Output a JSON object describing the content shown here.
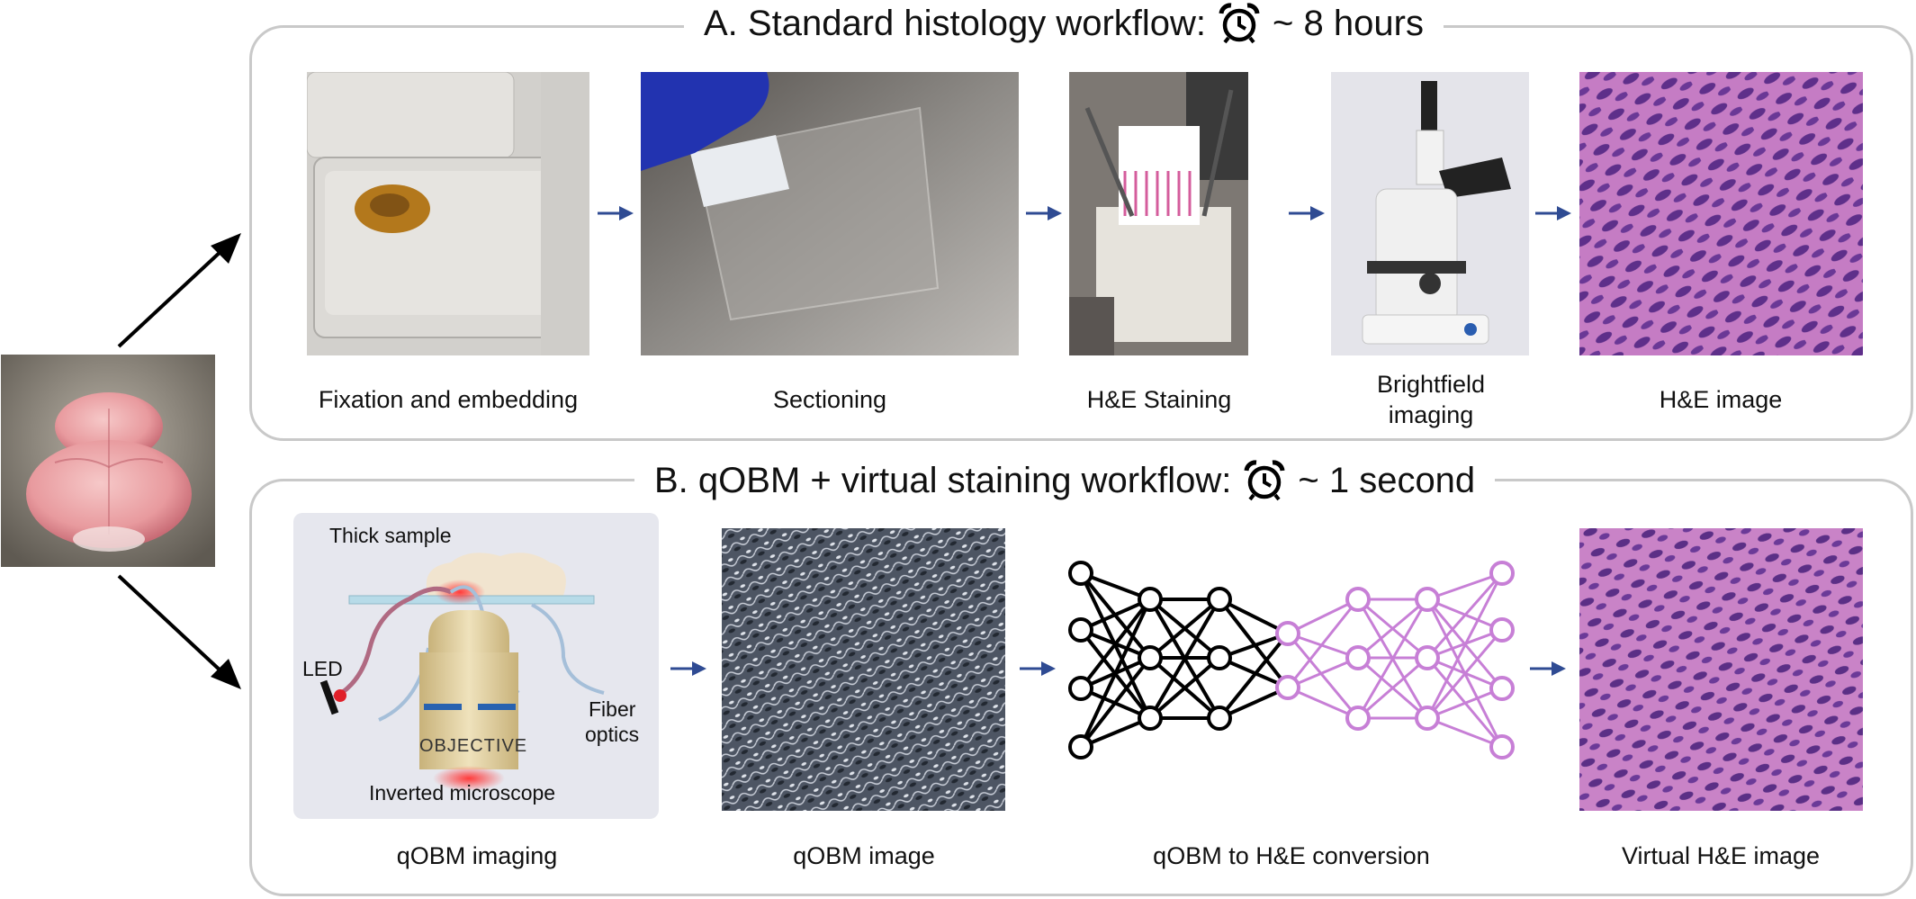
{
  "panel_a": {
    "title": "A. Standard histology workflow:",
    "time": "~ 8 hours",
    "clock_icon": "alarm-clock-icon",
    "steps": [
      {
        "label": "Fixation and embedding"
      },
      {
        "label": "Sectioning"
      },
      {
        "label": "H&E Staining"
      },
      {
        "label": "Brightfield imaging"
      },
      {
        "label": "H&E image"
      }
    ]
  },
  "panel_b": {
    "title": "B. qOBM + virtual staining workflow:",
    "time": "~ 1 second",
    "clock_icon": "alarm-clock-icon",
    "schematic": {
      "thick_sample": "Thick sample",
      "led": "LED",
      "fiber": "Fiber",
      "optics": "optics",
      "objective": "OBJECTIVE",
      "inverted_microscope": "Inverted microscope"
    },
    "steps": [
      {
        "label": "qOBM imaging"
      },
      {
        "label": "qOBM image"
      },
      {
        "label": "qOBM to H&E conversion"
      },
      {
        "label": "Virtual H&E image"
      }
    ]
  },
  "colors": {
    "panel_border": "#c9c9c9",
    "arrow_blue": "#2f4b93",
    "network_black": "#000000",
    "network_purple": "#c77fd6",
    "he_pink": "#c9609e",
    "he_purple": "#5b2f86",
    "objective_gold": "#d9c48f",
    "led_red": "#e0202a"
  }
}
